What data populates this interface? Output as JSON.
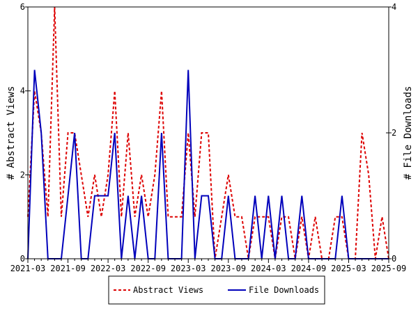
{
  "chart_data": {
    "type": "line",
    "title": "",
    "xlabel": "",
    "ylabel": "# Abstract Views",
    "y2label": "# File Downloads",
    "ylim": [
      0,
      6
    ],
    "y2lim": [
      0,
      4
    ],
    "yticks": [
      "0",
      "2",
      "4",
      "6"
    ],
    "y2ticks": [
      "0",
      "2",
      "4"
    ],
    "xtick_labels": [
      "2021-03",
      "2021-09",
      "2022-03",
      "2022-09",
      "2023-03",
      "2023-09",
      "2024-03",
      "2024-09",
      "2025-03",
      "2025-09"
    ],
    "x_start": "2021-03",
    "x_months": 55,
    "legend_position": "bottom-center",
    "series": [
      {
        "name": "Abstract Views",
        "axis": "left",
        "color": "#dd0000",
        "style": "dashed",
        "values": [
          1,
          4,
          3,
          1,
          6,
          1,
          3,
          3,
          2,
          1,
          2,
          1,
          2,
          4,
          1,
          3,
          1,
          2,
          1,
          2,
          4,
          1,
          1,
          1,
          3,
          1,
          3,
          3,
          0,
          1,
          2,
          1,
          1,
          0,
          1,
          1,
          1,
          0,
          1,
          1,
          0,
          1,
          0,
          1,
          0,
          0,
          1,
          1,
          0,
          0,
          3,
          2,
          0,
          1,
          0
        ]
      },
      {
        "name": "File Downloads",
        "axis": "right",
        "color": "#0000bb",
        "style": "solid",
        "values": [
          0,
          3,
          2,
          0,
          0,
          0,
          1,
          2,
          0,
          0,
          1,
          1,
          1,
          2,
          0,
          1,
          0,
          1,
          0,
          0,
          2,
          0,
          0,
          0,
          3,
          0,
          1,
          1,
          0,
          0,
          1,
          0,
          0,
          0,
          1,
          0,
          1,
          0,
          1,
          0,
          0,
          1,
          0,
          0,
          0,
          0,
          0,
          1,
          0,
          0,
          0,
          0,
          0,
          0,
          0
        ]
      }
    ]
  }
}
